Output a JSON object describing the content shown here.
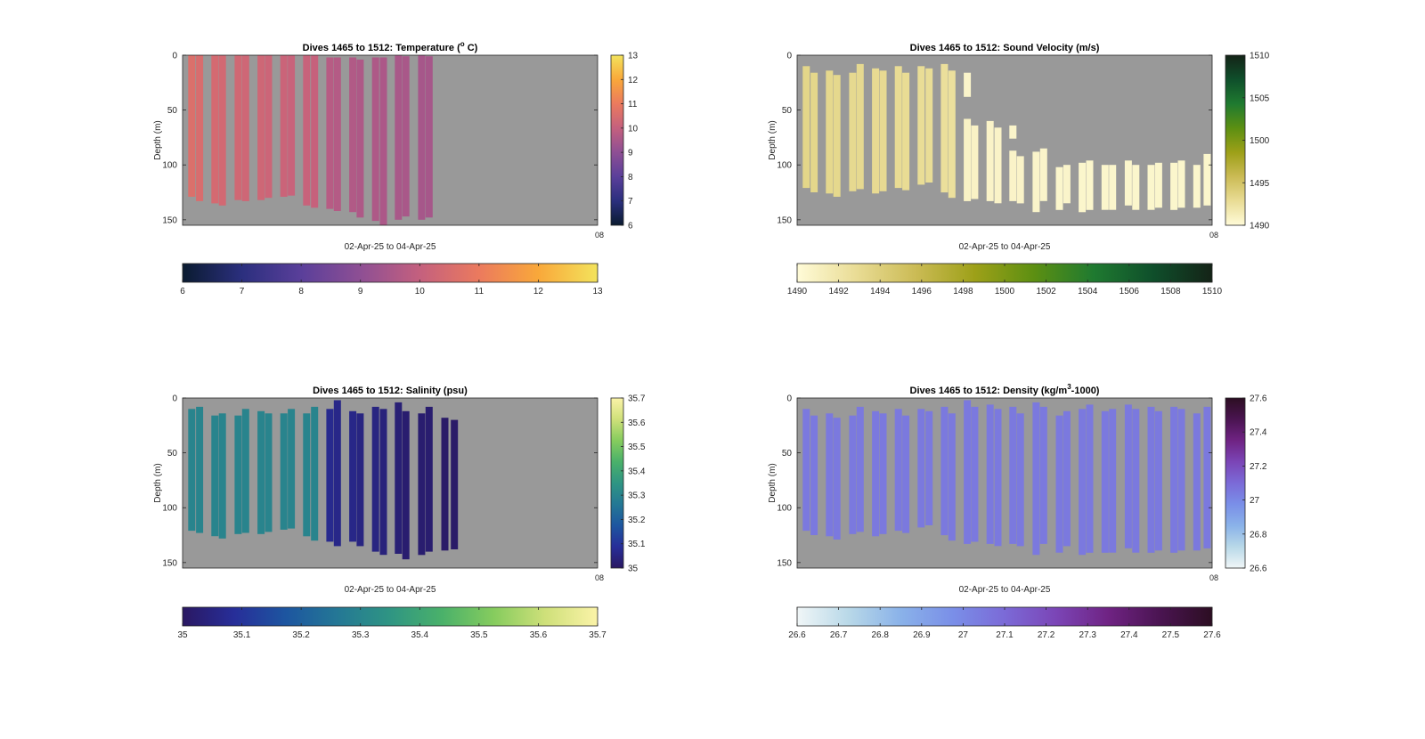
{
  "figure": {
    "background": "#ffffff",
    "axes_background": "#999999"
  },
  "chart_data": [
    {
      "type": "heatmap",
      "id": "temperature",
      "title_main": "Dives 1465 to 1512: Temperature (",
      "title_sup": "o",
      "title_end": " C)",
      "ylabel": "Depth (m)",
      "xlabel": "02-Apr-25 to 04-Apr-25",
      "x_end_tick": "08",
      "ylim": [
        0,
        155
      ],
      "yticks": [
        "0",
        "50",
        "100",
        "150"
      ],
      "colormap": [
        "#0a1b30",
        "#2b2f7e",
        "#5a3f9a",
        "#8e4f94",
        "#c4607e",
        "#eb7a5e",
        "#f9a83a",
        "#f3e35c"
      ],
      "clim": [
        6,
        13
      ],
      "vcb_ticks": [
        "6",
        "7",
        "8",
        "9",
        "10",
        "11",
        "12",
        "13"
      ],
      "hcb_ticks": [
        "6",
        "7",
        "8",
        "9",
        "10",
        "11",
        "12",
        "13"
      ],
      "profiles": [
        {
          "x": 0.022,
          "top": 0,
          "bottom": 129,
          "value": 10.6
        },
        {
          "x": 0.041,
          "top": 0,
          "bottom": 133,
          "value": 10.5
        },
        {
          "x": 0.078,
          "top": 0,
          "bottom": 135,
          "value": 10.4
        },
        {
          "x": 0.096,
          "top": 0,
          "bottom": 137,
          "value": 10.35
        },
        {
          "x": 0.134,
          "top": 0,
          "bottom": 132,
          "value": 10.3
        },
        {
          "x": 0.152,
          "top": 0,
          "bottom": 133,
          "value": 10.25
        },
        {
          "x": 0.189,
          "top": 0,
          "bottom": 132,
          "value": 10.25
        },
        {
          "x": 0.207,
          "top": 0,
          "bottom": 130,
          "value": 10.2
        },
        {
          "x": 0.244,
          "top": 0,
          "bottom": 129,
          "value": 10.15
        },
        {
          "x": 0.262,
          "top": 0,
          "bottom": 128,
          "value": 10.1
        },
        {
          "x": 0.299,
          "top": 0,
          "bottom": 137,
          "value": 10.1
        },
        {
          "x": 0.318,
          "top": 0,
          "bottom": 139,
          "value": 10.05
        },
        {
          "x": 0.355,
          "top": 2,
          "bottom": 140,
          "value": 9.75
        },
        {
          "x": 0.373,
          "top": 2,
          "bottom": 142,
          "value": 9.7
        },
        {
          "x": 0.41,
          "top": 2,
          "bottom": 143,
          "value": 9.65
        },
        {
          "x": 0.428,
          "top": 4,
          "bottom": 148,
          "value": 9.6
        },
        {
          "x": 0.465,
          "top": 2,
          "bottom": 151,
          "value": 9.6
        },
        {
          "x": 0.484,
          "top": 2,
          "bottom": 155,
          "value": 9.55
        },
        {
          "x": 0.52,
          "top": 0,
          "bottom": 150,
          "value": 9.5
        },
        {
          "x": 0.538,
          "top": 1,
          "bottom": 147,
          "value": 9.5
        },
        {
          "x": 0.576,
          "top": 0,
          "bottom": 150,
          "value": 9.45
        },
        {
          "x": 0.594,
          "top": 1,
          "bottom": 148,
          "value": 9.45
        }
      ]
    },
    {
      "type": "heatmap",
      "id": "sound-velocity",
      "title_main": "Dives 1465 to 1512: Sound Velocity (m/s)",
      "title_sup": "",
      "title_end": "",
      "ylabel": "Depth (m)",
      "xlabel": "02-Apr-25 to 04-Apr-25",
      "x_end_tick": "08",
      "ylim": [
        0,
        155
      ],
      "yticks": [
        "0",
        "50",
        "100",
        "150"
      ],
      "colormap": [
        "#fffbd8",
        "#e9dc95",
        "#cbbb55",
        "#9da018",
        "#5c8f12",
        "#1f7a30",
        "#0f4f2b",
        "#142317"
      ],
      "clim": [
        1490,
        1510
      ],
      "vcb_ticks": [
        "1490",
        "1495",
        "1500",
        "1505",
        "1510"
      ],
      "hcb_ticks": [
        "1490",
        "1492",
        "1494",
        "1496",
        "1498",
        "1500",
        "1502",
        "1504",
        "1506",
        "1508",
        "1510"
      ],
      "profiles": [
        {
          "x": 0.022,
          "top": 10,
          "bottom": 121,
          "value": 1493.4
        },
        {
          "x": 0.041,
          "top": 16,
          "bottom": 125,
          "value": 1493.3
        },
        {
          "x": 0.078,
          "top": 14,
          "bottom": 126,
          "value": 1493.2
        },
        {
          "x": 0.096,
          "top": 18,
          "bottom": 129,
          "value": 1493.2
        },
        {
          "x": 0.134,
          "top": 16,
          "bottom": 124,
          "value": 1493.1
        },
        {
          "x": 0.152,
          "top": 8,
          "bottom": 122,
          "value": 1493.1
        },
        {
          "x": 0.189,
          "top": 12,
          "bottom": 126,
          "value": 1493.0
        },
        {
          "x": 0.207,
          "top": 14,
          "bottom": 124,
          "value": 1493.0
        },
        {
          "x": 0.244,
          "top": 10,
          "bottom": 121,
          "value": 1492.9
        },
        {
          "x": 0.262,
          "top": 16,
          "bottom": 123,
          "value": 1492.9
        },
        {
          "x": 0.299,
          "top": 10,
          "bottom": 118,
          "value": 1492.8
        },
        {
          "x": 0.318,
          "top": 12,
          "bottom": 116,
          "value": 1492.8
        },
        {
          "x": 0.355,
          "top": 8,
          "bottom": 125,
          "value": 1492.6
        },
        {
          "x": 0.373,
          "top": 14,
          "bottom": 130,
          "value": 1492.5
        },
        {
          "x": 0.41,
          "top": 16,
          "bottom": 38,
          "value": 1490.6
        },
        {
          "x": 0.41,
          "top": 58,
          "bottom": 133,
          "value": 1490.8
        },
        {
          "x": 0.428,
          "top": 64,
          "bottom": 131,
          "value": 1490.8
        },
        {
          "x": 0.465,
          "top": 60,
          "bottom": 133,
          "value": 1490.7
        },
        {
          "x": 0.484,
          "top": 66,
          "bottom": 135,
          "value": 1490.7
        },
        {
          "x": 0.52,
          "top": 64,
          "bottom": 76,
          "value": 1490.6
        },
        {
          "x": 0.52,
          "top": 87,
          "bottom": 133,
          "value": 1490.7
        },
        {
          "x": 0.538,
          "top": 92,
          "bottom": 135,
          "value": 1490.7
        },
        {
          "x": 0.576,
          "top": 88,
          "bottom": 143,
          "value": 1490.6
        },
        {
          "x": 0.594,
          "top": 85,
          "bottom": 133,
          "value": 1490.6
        },
        {
          "x": 0.632,
          "top": 102,
          "bottom": 141,
          "value": 1490.5
        },
        {
          "x": 0.65,
          "top": 100,
          "bottom": 135,
          "value": 1490.6
        },
        {
          "x": 0.687,
          "top": 98,
          "bottom": 143,
          "value": 1490.5
        },
        {
          "x": 0.705,
          "top": 96,
          "bottom": 141,
          "value": 1490.5
        },
        {
          "x": 0.742,
          "top": 100,
          "bottom": 141,
          "value": 1490.5
        },
        {
          "x": 0.76,
          "top": 100,
          "bottom": 141,
          "value": 1490.5
        },
        {
          "x": 0.798,
          "top": 96,
          "bottom": 137,
          "value": 1490.5
        },
        {
          "x": 0.816,
          "top": 100,
          "bottom": 141,
          "value": 1490.5
        },
        {
          "x": 0.853,
          "top": 100,
          "bottom": 141,
          "value": 1490.5
        },
        {
          "x": 0.871,
          "top": 98,
          "bottom": 139,
          "value": 1490.5
        },
        {
          "x": 0.908,
          "top": 98,
          "bottom": 141,
          "value": 1490.5
        },
        {
          "x": 0.926,
          "top": 96,
          "bottom": 139,
          "value": 1490.5
        },
        {
          "x": 0.963,
          "top": 100,
          "bottom": 139,
          "value": 1490.5
        },
        {
          "x": 0.988,
          "top": 90,
          "bottom": 137,
          "value": 1490.5
        }
      ]
    },
    {
      "type": "heatmap",
      "id": "salinity",
      "title_main": "Dives 1465 to 1512: Salinity (psu)",
      "title_sup": "",
      "title_end": "",
      "ylabel": "Depth (m)",
      "xlabel": "02-Apr-25 to 04-Apr-25",
      "x_end_tick": "08",
      "ylim": [
        0,
        155
      ],
      "yticks": [
        "0",
        "50",
        "100",
        "150"
      ],
      "colormap": [
        "#2a1862",
        "#272e99",
        "#1d56a0",
        "#247895",
        "#2f9583",
        "#4ab16a",
        "#86cc5e",
        "#cfe07a",
        "#fbf3a8"
      ],
      "clim": [
        35,
        35.7
      ],
      "vcb_ticks": [
        "35",
        "35.1",
        "35.2",
        "35.3",
        "35.4",
        "35.5",
        "35.6",
        "35.7"
      ],
      "hcb_ticks": [
        "35",
        "35.1",
        "35.2",
        "35.3",
        "35.4",
        "35.5",
        "35.6",
        "35.7"
      ],
      "profiles": [
        {
          "x": 0.022,
          "top": 10,
          "bottom": 121,
          "value": 35.3
        },
        {
          "x": 0.041,
          "top": 8,
          "bottom": 123,
          "value": 35.3
        },
        {
          "x": 0.078,
          "top": 16,
          "bottom": 126,
          "value": 35.3
        },
        {
          "x": 0.096,
          "top": 14,
          "bottom": 128,
          "value": 35.3
        },
        {
          "x": 0.134,
          "top": 16,
          "bottom": 124,
          "value": 35.3
        },
        {
          "x": 0.152,
          "top": 10,
          "bottom": 123,
          "value": 35.3
        },
        {
          "x": 0.189,
          "top": 12,
          "bottom": 124,
          "value": 35.3
        },
        {
          "x": 0.207,
          "top": 14,
          "bottom": 122,
          "value": 35.3
        },
        {
          "x": 0.244,
          "top": 14,
          "bottom": 120,
          "value": 35.3
        },
        {
          "x": 0.262,
          "top": 10,
          "bottom": 119,
          "value": 35.3
        },
        {
          "x": 0.299,
          "top": 14,
          "bottom": 126,
          "value": 35.3
        },
        {
          "x": 0.318,
          "top": 8,
          "bottom": 130,
          "value": 35.3
        },
        {
          "x": 0.355,
          "top": 10,
          "bottom": 131,
          "value": 35.07
        },
        {
          "x": 0.373,
          "top": 2,
          "bottom": 135,
          "value": 35.06
        },
        {
          "x": 0.41,
          "top": 12,
          "bottom": 131,
          "value": 35.06
        },
        {
          "x": 0.428,
          "top": 14,
          "bottom": 135,
          "value": 35.05
        },
        {
          "x": 0.465,
          "top": 8,
          "bottom": 140,
          "value": 35.05
        },
        {
          "x": 0.484,
          "top": 10,
          "bottom": 143,
          "value": 35.04
        },
        {
          "x": 0.52,
          "top": 4,
          "bottom": 142,
          "value": 35.03
        },
        {
          "x": 0.538,
          "top": 12,
          "bottom": 147,
          "value": 35.02
        },
        {
          "x": 0.576,
          "top": 14,
          "bottom": 143,
          "value": 35.02
        },
        {
          "x": 0.594,
          "top": 8,
          "bottom": 140,
          "value": 35.02
        },
        {
          "x": 0.632,
          "top": 18,
          "bottom": 139,
          "value": 35.01
        },
        {
          "x": 0.655,
          "top": 20,
          "bottom": 138,
          "value": 35.01
        }
      ]
    },
    {
      "type": "heatmap",
      "id": "density",
      "title_main": "Dives 1465 to 1512: Density (kg/m",
      "title_sup": "3",
      "title_end": "-1000)",
      "ylabel": "Depth (m)",
      "xlabel": "02-Apr-25 to 04-Apr-25",
      "x_end_tick": "08",
      "ylim": [
        0,
        155
      ],
      "yticks": [
        "0",
        "50",
        "100",
        "150"
      ],
      "colormap": [
        "#f0f6f7",
        "#b8d8e8",
        "#8ab2e9",
        "#7a8fe8",
        "#7b6ad7",
        "#7b45b6",
        "#6f2383",
        "#4a1451",
        "#2c0e22"
      ],
      "clim": [
        26.6,
        27.6
      ],
      "vcb_ticks": [
        "26.6",
        "26.8",
        "27",
        "27.2",
        "27.4",
        "27.6"
      ],
      "hcb_ticks": [
        "26.6",
        "26.7",
        "26.8",
        "26.9",
        "27",
        "27.1",
        "27.2",
        "27.3",
        "27.4",
        "27.5",
        "27.6"
      ],
      "profiles": [
        {
          "x": 0.022,
          "top": 10,
          "bottom": 121,
          "value": 27.05
        },
        {
          "x": 0.041,
          "top": 16,
          "bottom": 125,
          "value": 27.05
        },
        {
          "x": 0.078,
          "top": 14,
          "bottom": 126,
          "value": 27.05
        },
        {
          "x": 0.096,
          "top": 18,
          "bottom": 129,
          "value": 27.05
        },
        {
          "x": 0.134,
          "top": 16,
          "bottom": 124,
          "value": 27.05
        },
        {
          "x": 0.152,
          "top": 8,
          "bottom": 122,
          "value": 27.05
        },
        {
          "x": 0.189,
          "top": 12,
          "bottom": 126,
          "value": 27.05
        },
        {
          "x": 0.207,
          "top": 14,
          "bottom": 124,
          "value": 27.05
        },
        {
          "x": 0.244,
          "top": 10,
          "bottom": 121,
          "value": 27.05
        },
        {
          "x": 0.262,
          "top": 16,
          "bottom": 123,
          "value": 27.05
        },
        {
          "x": 0.299,
          "top": 10,
          "bottom": 118,
          "value": 27.05
        },
        {
          "x": 0.318,
          "top": 12,
          "bottom": 116,
          "value": 27.05
        },
        {
          "x": 0.355,
          "top": 8,
          "bottom": 125,
          "value": 27.05
        },
        {
          "x": 0.373,
          "top": 14,
          "bottom": 130,
          "value": 27.05
        },
        {
          "x": 0.41,
          "top": 2,
          "bottom": 133,
          "value": 27.05
        },
        {
          "x": 0.428,
          "top": 8,
          "bottom": 131,
          "value": 27.05
        },
        {
          "x": 0.465,
          "top": 6,
          "bottom": 133,
          "value": 27.05
        },
        {
          "x": 0.484,
          "top": 10,
          "bottom": 135,
          "value": 27.05
        },
        {
          "x": 0.52,
          "top": 8,
          "bottom": 133,
          "value": 27.05
        },
        {
          "x": 0.538,
          "top": 14,
          "bottom": 135,
          "value": 27.05
        },
        {
          "x": 0.576,
          "top": 4,
          "bottom": 143,
          "value": 27.05
        },
        {
          "x": 0.594,
          "top": 8,
          "bottom": 133,
          "value": 27.05
        },
        {
          "x": 0.632,
          "top": 16,
          "bottom": 141,
          "value": 27.05
        },
        {
          "x": 0.65,
          "top": 12,
          "bottom": 135,
          "value": 27.05
        },
        {
          "x": 0.687,
          "top": 10,
          "bottom": 143,
          "value": 27.05
        },
        {
          "x": 0.705,
          "top": 6,
          "bottom": 141,
          "value": 27.05
        },
        {
          "x": 0.742,
          "top": 12,
          "bottom": 141,
          "value": 27.05
        },
        {
          "x": 0.76,
          "top": 10,
          "bottom": 141,
          "value": 27.05
        },
        {
          "x": 0.798,
          "top": 6,
          "bottom": 137,
          "value": 27.05
        },
        {
          "x": 0.816,
          "top": 10,
          "bottom": 141,
          "value": 27.05
        },
        {
          "x": 0.853,
          "top": 8,
          "bottom": 141,
          "value": 27.05
        },
        {
          "x": 0.871,
          "top": 12,
          "bottom": 139,
          "value": 27.05
        },
        {
          "x": 0.908,
          "top": 8,
          "bottom": 141,
          "value": 27.05
        },
        {
          "x": 0.926,
          "top": 10,
          "bottom": 139,
          "value": 27.05
        },
        {
          "x": 0.963,
          "top": 14,
          "bottom": 139,
          "value": 27.05
        },
        {
          "x": 0.988,
          "top": 8,
          "bottom": 137,
          "value": 27.05
        }
      ]
    }
  ]
}
